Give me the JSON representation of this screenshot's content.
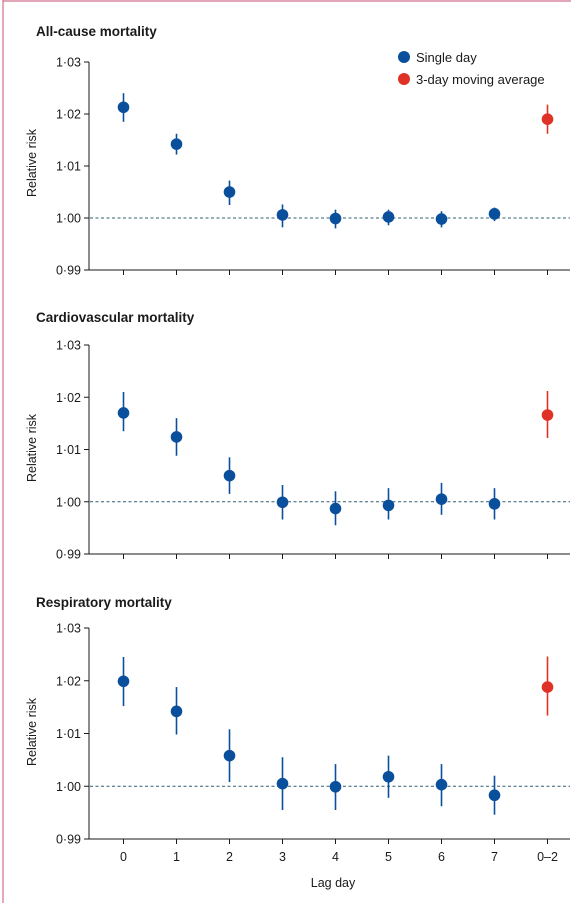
{
  "colors": {
    "single_day": "#0a4f9c",
    "moving_average": "#e03127",
    "frame": "#d1718d",
    "reference_line": "#2f5f73",
    "axis": "#1a1a1a"
  },
  "legend": {
    "single_day": "Single day",
    "moving_average": "3-day moving average"
  },
  "chart_data": [
    {
      "type": "scatter",
      "title": "All-cause mortality",
      "ylabel": "Relative risk",
      "xlabel": "",
      "categories": [
        "0",
        "1",
        "2",
        "3",
        "4",
        "5",
        "6",
        "7",
        "0–2"
      ],
      "ylim": [
        0.99,
        1.03
      ],
      "yticks": [
        "0·99",
        "1·00",
        "1·01",
        "1·02",
        "1·03"
      ],
      "reference_line": 1.0,
      "series": [
        {
          "name": "Single day",
          "points": [
            {
              "x": "0",
              "y": 1.0213,
              "lo": 1.0185,
              "hi": 1.024
            },
            {
              "x": "1",
              "y": 1.0142,
              "lo": 1.0122,
              "hi": 1.0162
            },
            {
              "x": "2",
              "y": 1.005,
              "lo": 1.0025,
              "hi": 1.0072
            },
            {
              "x": "3",
              "y": 1.0006,
              "lo": 0.9982,
              "hi": 1.0026
            },
            {
              "x": "4",
              "y": 0.9999,
              "lo": 0.998,
              "hi": 1.0016
            },
            {
              "x": "5",
              "y": 1.0002,
              "lo": 0.9986,
              "hi": 1.0016
            },
            {
              "x": "6",
              "y": 0.9998,
              "lo": 0.9982,
              "hi": 1.0013
            },
            {
              "x": "7",
              "y": 1.0008,
              "lo": 0.9994,
              "hi": 1.002
            }
          ]
        },
        {
          "name": "3-day moving average",
          "points": [
            {
              "x": "0–2",
              "y": 1.019,
              "lo": 1.0162,
              "hi": 1.0218
            }
          ]
        }
      ]
    },
    {
      "type": "scatter",
      "title": "Cardiovascular mortality",
      "ylabel": "Relative risk",
      "xlabel": "",
      "categories": [
        "0",
        "1",
        "2",
        "3",
        "4",
        "5",
        "6",
        "7",
        "0–2"
      ],
      "ylim": [
        0.99,
        1.03
      ],
      "yticks": [
        "0·99",
        "1·00",
        "1·01",
        "1·02",
        "1·03"
      ],
      "reference_line": 1.0,
      "series": [
        {
          "name": "Single day",
          "points": [
            {
              "x": "0",
              "y": 1.017,
              "lo": 1.0135,
              "hi": 1.021
            },
            {
              "x": "1",
              "y": 1.0124,
              "lo": 1.0088,
              "hi": 1.016
            },
            {
              "x": "2",
              "y": 1.005,
              "lo": 1.0015,
              "hi": 1.0085
            },
            {
              "x": "3",
              "y": 0.9999,
              "lo": 0.9966,
              "hi": 1.0032
            },
            {
              "x": "4",
              "y": 0.9987,
              "lo": 0.9955,
              "hi": 1.002
            },
            {
              "x": "5",
              "y": 0.9993,
              "lo": 0.9966,
              "hi": 1.0026
            },
            {
              "x": "6",
              "y": 1.0005,
              "lo": 0.9975,
              "hi": 1.0036
            },
            {
              "x": "7",
              "y": 0.9996,
              "lo": 0.9966,
              "hi": 1.0026
            }
          ]
        },
        {
          "name": "3-day moving average",
          "points": [
            {
              "x": "0–2",
              "y": 1.0166,
              "lo": 1.0122,
              "hi": 1.0212
            }
          ]
        }
      ]
    },
    {
      "type": "scatter",
      "title": "Respiratory mortality",
      "ylabel": "Relative risk",
      "xlabel": "Lag day",
      "categories": [
        "0",
        "1",
        "2",
        "3",
        "4",
        "5",
        "6",
        "7",
        "0–2"
      ],
      "ylim": [
        0.99,
        1.03
      ],
      "yticks": [
        "0·99",
        "1·00",
        "1·01",
        "1·02",
        "1·03"
      ],
      "reference_line": 1.0,
      "series": [
        {
          "name": "Single day",
          "points": [
            {
              "x": "0",
              "y": 1.0199,
              "lo": 1.0152,
              "hi": 1.0245
            },
            {
              "x": "1",
              "y": 1.0142,
              "lo": 1.0098,
              "hi": 1.0188
            },
            {
              "x": "2",
              "y": 1.0058,
              "lo": 1.0008,
              "hi": 1.0108
            },
            {
              "x": "3",
              "y": 1.0005,
              "lo": 0.9955,
              "hi": 1.0055
            },
            {
              "x": "4",
              "y": 0.9999,
              "lo": 0.9955,
              "hi": 1.0042
            },
            {
              "x": "5",
              "y": 1.0018,
              "lo": 0.9978,
              "hi": 1.0058
            },
            {
              "x": "6",
              "y": 1.0003,
              "lo": 0.9962,
              "hi": 1.0042
            },
            {
              "x": "7",
              "y": 0.9983,
              "lo": 0.9946,
              "hi": 1.002
            }
          ]
        },
        {
          "name": "3-day moving average",
          "points": [
            {
              "x": "0–2",
              "y": 1.0188,
              "lo": 1.0134,
              "hi": 1.0246
            }
          ]
        }
      ]
    }
  ]
}
